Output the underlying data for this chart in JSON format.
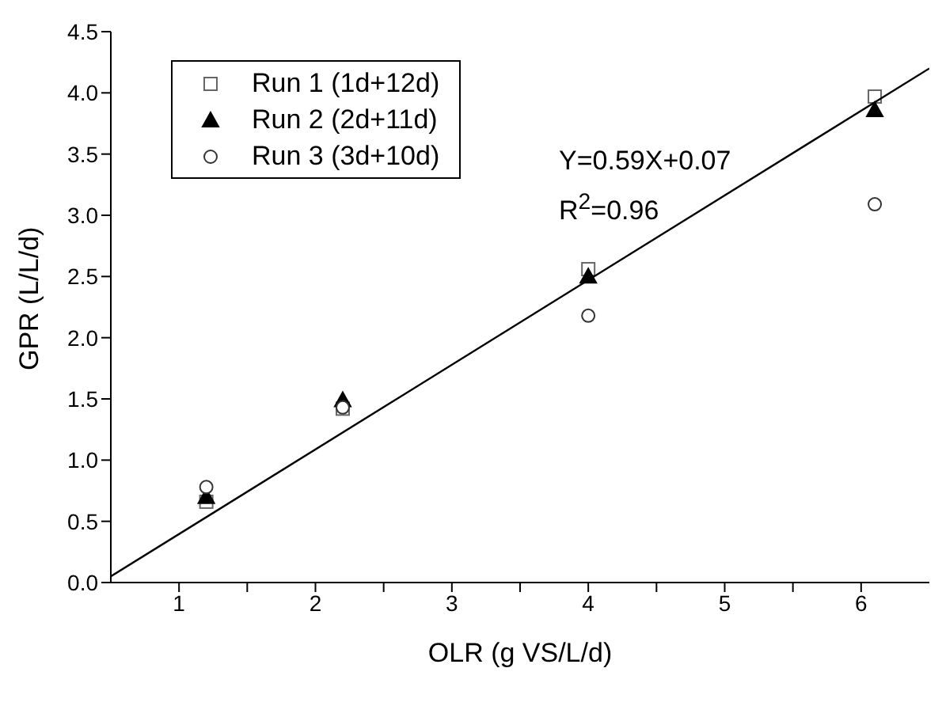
{
  "chart_data": {
    "type": "scatter",
    "xlabel": "OLR (g VS/L/d)",
    "ylabel": "GPR (L/L/d)",
    "xlim": [
      0.5,
      6.5
    ],
    "xticks": [
      1,
      {
        "value": 1.5,
        "label": null
      },
      2,
      {
        "value": 2.5,
        "label": null
      },
      3,
      {
        "value": 3.5,
        "label": null
      },
      4,
      {
        "value": 4.5,
        "label": null
      },
      5,
      {
        "value": 5.5,
        "label": null
      },
      6
    ],
    "ylim": [
      0,
      4.5
    ],
    "yticks": [
      {
        "value": 0,
        "label": "0.0"
      },
      {
        "value": 0.5,
        "label": "0.5"
      },
      {
        "value": 1,
        "label": "1.0"
      },
      {
        "value": 1.5,
        "label": "1.5"
      },
      {
        "value": 2,
        "label": "2.0"
      },
      {
        "value": 2.5,
        "label": "2.5"
      },
      {
        "value": 3,
        "label": "3.0"
      },
      {
        "value": 3.5,
        "label": "3.5"
      },
      {
        "value": 4,
        "label": "4.0"
      },
      {
        "value": 4.5,
        "label": "4.5"
      }
    ],
    "grid": false,
    "legend": "top left",
    "x": [
      1.2,
      2.2,
      4,
      6.1
    ],
    "series": [
      {
        "name": "Run 1 (1d+12d)",
        "color": "#666666",
        "marker": "square",
        "values": [
          0.66,
          1.42,
          2.56,
          3.97
        ]
      },
      {
        "name": "Run 2 (2d+11d)",
        "color": "#000000",
        "marker": "triangle",
        "values": [
          0.7,
          1.49,
          2.5,
          3.86
        ]
      },
      {
        "name": "Run 3 (3d+10d)",
        "color": "#333333",
        "marker": "circle",
        "values": [
          0.78,
          1.43,
          2.18,
          3.09
        ]
      },
      {
        "type": "line",
        "color": "#000000",
        "marker": "none",
        "x": [
          0.5,
          6.5
        ],
        "values": [
          0.05,
          4.2
        ]
      }
    ],
    "annotations": [
      "Y=0.59X+0.07",
      "R$^{2}$=0.96"
    ]
  }
}
